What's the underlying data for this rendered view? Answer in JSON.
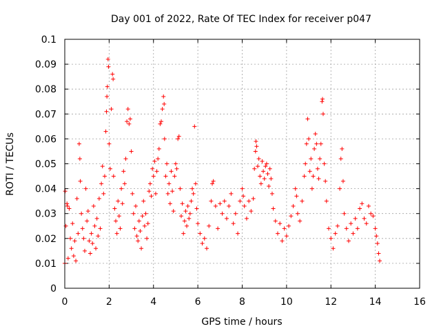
{
  "chart_data": {
    "type": "scatter",
    "title": "Day 001 of 2022, Rate Of TEC Index for receiver p047",
    "xlabel": "GPS time / hours",
    "ylabel": "ROTI / TECUs",
    "xlim": [
      0,
      16
    ],
    "ylim": [
      0,
      0.1
    ],
    "x_ticks": [
      0,
      2,
      4,
      6,
      8,
      10,
      12,
      14,
      16
    ],
    "y_ticks": [
      0,
      0.01,
      0.02,
      0.03,
      0.04,
      0.05,
      0.06,
      0.07,
      0.08,
      0.09,
      0.1
    ],
    "x_tick_labels": [
      "0",
      "2",
      "4",
      "6",
      "8",
      "10",
      "12",
      "14",
      "16"
    ],
    "y_tick_labels": [
      "0",
      "0.01",
      "0.02",
      "0.03",
      "0.04",
      "0.05",
      "0.06",
      "0.07",
      "0.08",
      "0.09",
      "0.1"
    ],
    "grid": true,
    "marker": "plus",
    "series": [
      {
        "name": "ROTI",
        "color": "#ff0000",
        "points": [
          [
            0.0,
            0.01
          ],
          [
            0.02,
            0.039
          ],
          [
            0.05,
            0.025
          ],
          [
            0.1,
            0.034
          ],
          [
            0.12,
            0.033
          ],
          [
            0.15,
            0.012
          ],
          [
            0.2,
            0.032
          ],
          [
            0.25,
            0.02
          ],
          [
            0.3,
            0.016
          ],
          [
            0.35,
            0.026
          ],
          [
            0.4,
            0.013
          ],
          [
            0.45,
            0.019
          ],
          [
            0.5,
            0.011
          ],
          [
            0.55,
            0.036
          ],
          [
            0.6,
            0.022
          ],
          [
            0.65,
            0.058
          ],
          [
            0.68,
            0.052
          ],
          [
            0.7,
            0.043
          ],
          [
            0.75,
            0.03
          ],
          [
            0.8,
            0.024
          ],
          [
            0.85,
            0.02
          ],
          [
            0.9,
            0.015
          ],
          [
            0.95,
            0.04
          ],
          [
            1.0,
            0.027
          ],
          [
            1.05,
            0.031
          ],
          [
            1.1,
            0.019
          ],
          [
            1.15,
            0.014
          ],
          [
            1.2,
            0.022
          ],
          [
            1.25,
            0.018
          ],
          [
            1.3,
            0.033
          ],
          [
            1.35,
            0.025
          ],
          [
            1.4,
            0.016
          ],
          [
            1.45,
            0.028
          ],
          [
            1.5,
            0.021
          ],
          [
            1.55,
            0.036
          ],
          [
            1.6,
            0.024
          ],
          [
            1.65,
            0.042
          ],
          [
            1.7,
            0.049
          ],
          [
            1.75,
            0.038
          ],
          [
            1.8,
            0.045
          ],
          [
            1.85,
            0.063
          ],
          [
            1.88,
            0.071
          ],
          [
            1.9,
            0.077
          ],
          [
            1.92,
            0.081
          ],
          [
            1.95,
            0.092
          ],
          [
            1.97,
            0.089
          ],
          [
            2.0,
            0.058
          ],
          [
            2.05,
            0.048
          ],
          [
            2.1,
            0.072
          ],
          [
            2.15,
            0.086
          ],
          [
            2.18,
            0.084
          ],
          [
            2.2,
            0.045
          ],
          [
            2.25,
            0.032
          ],
          [
            2.3,
            0.027
          ],
          [
            2.35,
            0.022
          ],
          [
            2.4,
            0.035
          ],
          [
            2.45,
            0.029
          ],
          [
            2.5,
            0.024
          ],
          [
            2.55,
            0.04
          ],
          [
            2.6,
            0.034
          ],
          [
            2.65,
            0.047
          ],
          [
            2.7,
            0.042
          ],
          [
            2.75,
            0.052
          ],
          [
            2.8,
            0.067
          ],
          [
            2.85,
            0.072
          ],
          [
            2.9,
            0.066
          ],
          [
            2.95,
            0.068
          ],
          [
            3.0,
            0.055
          ],
          [
            3.05,
            0.038
          ],
          [
            3.1,
            0.03
          ],
          [
            3.15,
            0.024
          ],
          [
            3.2,
            0.033
          ],
          [
            3.25,
            0.021
          ],
          [
            3.3,
            0.019
          ],
          [
            3.35,
            0.027
          ],
          [
            3.4,
            0.023
          ],
          [
            3.45,
            0.016
          ],
          [
            3.5,
            0.029
          ],
          [
            3.55,
            0.035
          ],
          [
            3.6,
            0.025
          ],
          [
            3.65,
            0.03
          ],
          [
            3.7,
            0.02
          ],
          [
            3.75,
            0.026
          ],
          [
            3.8,
            0.039
          ],
          [
            3.85,
            0.042
          ],
          [
            3.9,
            0.037
          ],
          [
            3.95,
            0.048
          ],
          [
            4.0,
            0.045
          ],
          [
            4.05,
            0.051
          ],
          [
            4.1,
            0.038
          ],
          [
            4.15,
            0.047
          ],
          [
            4.2,
            0.052
          ],
          [
            4.25,
            0.056
          ],
          [
            4.3,
            0.066
          ],
          [
            4.35,
            0.067
          ],
          [
            4.4,
            0.072
          ],
          [
            4.45,
            0.077
          ],
          [
            4.48,
            0.074
          ],
          [
            4.5,
            0.06
          ],
          [
            4.55,
            0.045
          ],
          [
            4.6,
            0.05
          ],
          [
            4.65,
            0.038
          ],
          [
            4.7,
            0.042
          ],
          [
            4.75,
            0.034
          ],
          [
            4.8,
            0.047
          ],
          [
            4.85,
            0.039
          ],
          [
            4.9,
            0.031
          ],
          [
            4.95,
            0.045
          ],
          [
            5.0,
            0.05
          ],
          [
            5.05,
            0.048
          ],
          [
            5.1,
            0.06
          ],
          [
            5.15,
            0.061
          ],
          [
            5.2,
            0.04
          ],
          [
            5.25,
            0.029
          ],
          [
            5.3,
            0.034
          ],
          [
            5.35,
            0.022
          ],
          [
            5.4,
            0.027
          ],
          [
            5.45,
            0.031
          ],
          [
            5.5,
            0.025
          ],
          [
            5.55,
            0.033
          ],
          [
            5.6,
            0.028
          ],
          [
            5.65,
            0.03
          ],
          [
            5.7,
            0.035
          ],
          [
            5.75,
            0.04
          ],
          [
            5.8,
            0.038
          ],
          [
            5.85,
            0.065
          ],
          [
            5.9,
            0.042
          ],
          [
            5.95,
            0.032
          ],
          [
            6.0,
            0.026
          ],
          [
            6.1,
            0.022
          ],
          [
            6.2,
            0.018
          ],
          [
            6.3,
            0.02
          ],
          [
            6.4,
            0.016
          ],
          [
            6.5,
            0.025
          ],
          [
            6.6,
            0.035
          ],
          [
            6.65,
            0.042
          ],
          [
            6.7,
            0.043
          ],
          [
            6.8,
            0.033
          ],
          [
            6.9,
            0.024
          ],
          [
            7.0,
            0.034
          ],
          [
            7.1,
            0.03
          ],
          [
            7.2,
            0.035
          ],
          [
            7.3,
            0.028
          ],
          [
            7.4,
            0.033
          ],
          [
            7.5,
            0.038
          ],
          [
            7.6,
            0.026
          ],
          [
            7.7,
            0.03
          ],
          [
            7.8,
            0.022
          ],
          [
            7.9,
            0.035
          ],
          [
            8.0,
            0.04
          ],
          [
            8.05,
            0.037
          ],
          [
            8.1,
            0.033
          ],
          [
            8.2,
            0.028
          ],
          [
            8.3,
            0.035
          ],
          [
            8.4,
            0.031
          ],
          [
            8.5,
            0.036
          ],
          [
            8.55,
            0.048
          ],
          [
            8.6,
            0.055
          ],
          [
            8.62,
            0.059
          ],
          [
            8.65,
            0.057
          ],
          [
            8.7,
            0.049
          ],
          [
            8.75,
            0.052
          ],
          [
            8.8,
            0.045
          ],
          [
            8.85,
            0.042
          ],
          [
            8.9,
            0.051
          ],
          [
            8.95,
            0.047
          ],
          [
            9.0,
            0.044
          ],
          [
            9.05,
            0.049
          ],
          [
            9.1,
            0.05
          ],
          [
            9.15,
            0.046
          ],
          [
            9.2,
            0.041
          ],
          [
            9.25,
            0.048
          ],
          [
            9.3,
            0.044
          ],
          [
            9.35,
            0.038
          ],
          [
            9.4,
            0.032
          ],
          [
            9.5,
            0.027
          ],
          [
            9.6,
            0.022
          ],
          [
            9.7,
            0.026
          ],
          [
            9.8,
            0.019
          ],
          [
            9.9,
            0.024
          ],
          [
            10.0,
            0.021
          ],
          [
            10.1,
            0.025
          ],
          [
            10.2,
            0.029
          ],
          [
            10.3,
            0.033
          ],
          [
            10.4,
            0.04
          ],
          [
            10.45,
            0.037
          ],
          [
            10.5,
            0.03
          ],
          [
            10.6,
            0.027
          ],
          [
            10.7,
            0.035
          ],
          [
            10.8,
            0.045
          ],
          [
            10.85,
            0.05
          ],
          [
            10.9,
            0.058
          ],
          [
            10.95,
            0.068
          ],
          [
            11.0,
            0.06
          ],
          [
            11.05,
            0.047
          ],
          [
            11.1,
            0.052
          ],
          [
            11.15,
            0.04
          ],
          [
            11.2,
            0.045
          ],
          [
            11.25,
            0.056
          ],
          [
            11.3,
            0.062
          ],
          [
            11.35,
            0.058
          ],
          [
            11.4,
            0.048
          ],
          [
            11.45,
            0.044
          ],
          [
            11.5,
            0.052
          ],
          [
            11.55,
            0.058
          ],
          [
            11.6,
            0.075
          ],
          [
            11.62,
            0.076
          ],
          [
            11.65,
            0.07
          ],
          [
            11.7,
            0.05
          ],
          [
            11.75,
            0.043
          ],
          [
            11.8,
            0.035
          ],
          [
            11.9,
            0.024
          ],
          [
            12.0,
            0.02
          ],
          [
            12.1,
            0.016
          ],
          [
            12.2,
            0.022
          ],
          [
            12.3,
            0.025
          ],
          [
            12.4,
            0.04
          ],
          [
            12.45,
            0.052
          ],
          [
            12.5,
            0.056
          ],
          [
            12.55,
            0.043
          ],
          [
            12.6,
            0.03
          ],
          [
            12.7,
            0.024
          ],
          [
            12.8,
            0.019
          ],
          [
            12.9,
            0.026
          ],
          [
            13.0,
            0.022
          ],
          [
            13.1,
            0.028
          ],
          [
            13.2,
            0.024
          ],
          [
            13.3,
            0.032
          ],
          [
            13.4,
            0.034
          ],
          [
            13.5,
            0.028
          ],
          [
            13.6,
            0.026
          ],
          [
            13.7,
            0.033
          ],
          [
            13.8,
            0.03
          ],
          [
            13.9,
            0.029
          ],
          [
            14.0,
            0.024
          ],
          [
            14.05,
            0.021
          ],
          [
            14.1,
            0.018
          ],
          [
            14.15,
            0.014
          ],
          [
            14.2,
            0.011
          ]
        ]
      }
    ]
  }
}
